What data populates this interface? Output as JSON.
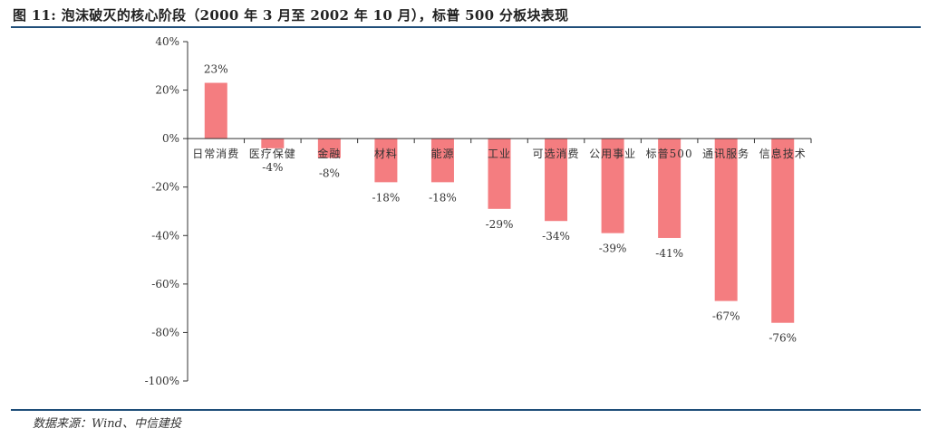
{
  "title": "图 11: 泡沫破灭的核心阶段（2000 年 3 月至 2002 年 10 月），标普 500 分板块表现",
  "source": "数据来源：Wind、中信建投",
  "colors": {
    "bar": "#f47d80",
    "axis": "#333333",
    "rule": "#1f4e79"
  },
  "chart_data": {
    "type": "bar",
    "categories": [
      "日常消费",
      "医疗保健",
      "金融",
      "材料",
      "能源",
      "工业",
      "可选消费",
      "公用事业",
      "标普500",
      "通讯服务",
      "信息技术"
    ],
    "values": [
      23,
      -4,
      -8,
      -18,
      -18,
      -29,
      -34,
      -39,
      -41,
      -67,
      -76
    ],
    "value_labels": [
      "23%",
      "-4%",
      "-8%",
      "-18%",
      "-18%",
      "-29%",
      "-34%",
      "-39%",
      "-41%",
      "-67%",
      "-76%"
    ],
    "ylim": [
      -100,
      40
    ],
    "yticks": [
      40,
      20,
      0,
      -20,
      -40,
      -60,
      -80,
      -100
    ],
    "ytick_labels": [
      "40%",
      "20%",
      "0%",
      "-20%",
      "-40%",
      "-60%",
      "-80%",
      "-100%"
    ],
    "grid": false,
    "xlabel": "",
    "ylabel": ""
  }
}
